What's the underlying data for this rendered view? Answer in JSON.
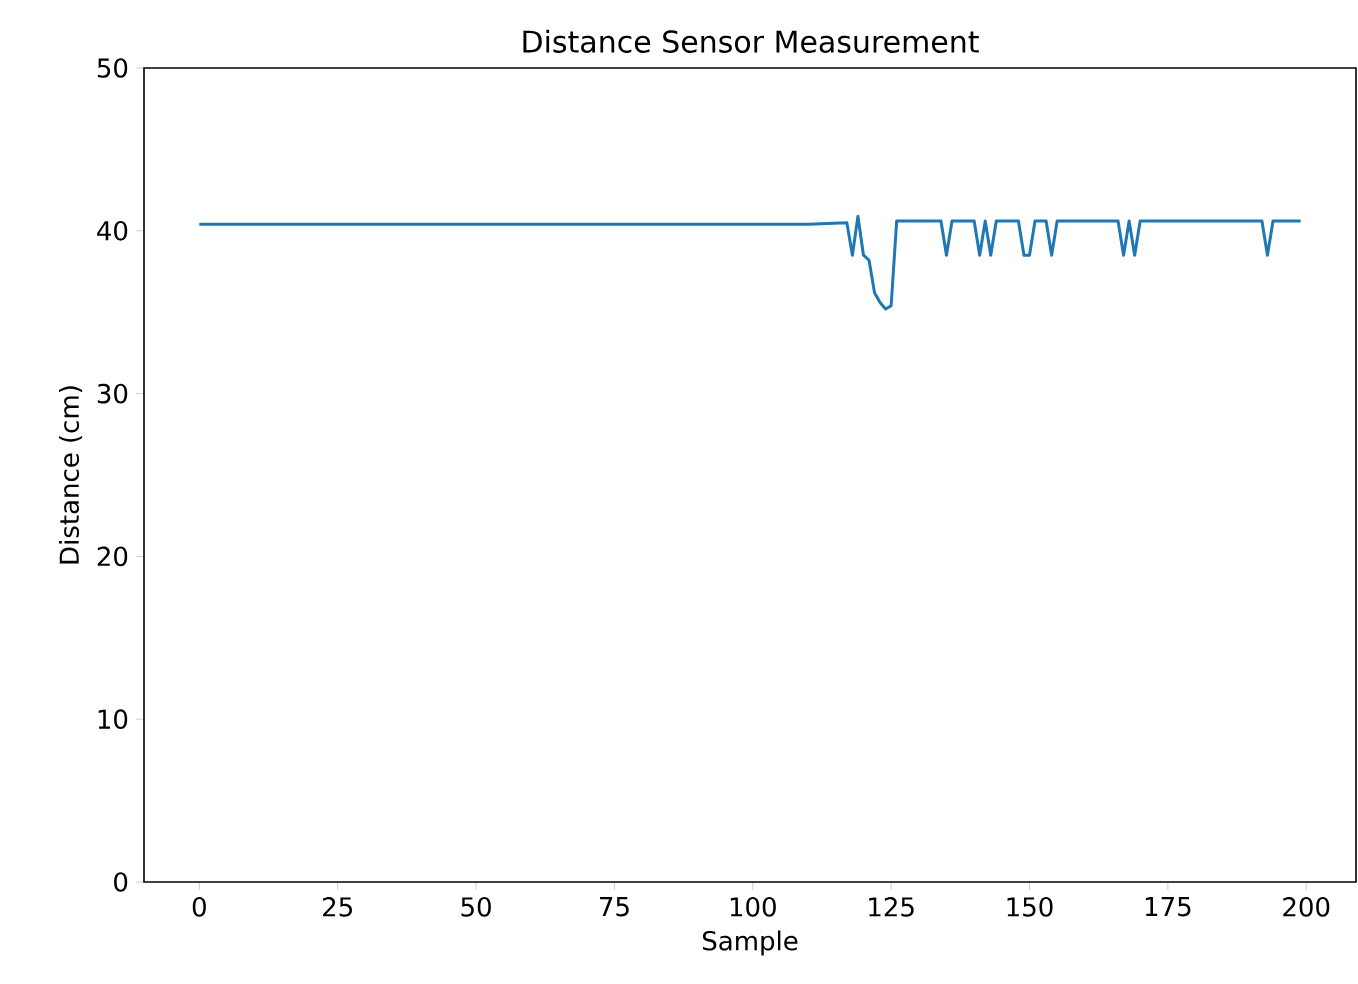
{
  "chart_data": {
    "type": "line",
    "title": "Distance Sensor Measurement",
    "xlabel": "Sample",
    "ylabel": "Distance (cm)",
    "xlim": [
      -10,
      209
    ],
    "ylim": [
      0,
      50
    ],
    "xticks": [
      0,
      25,
      50,
      75,
      100,
      125,
      150,
      175,
      200
    ],
    "yticks": [
      0,
      10,
      20,
      30,
      40,
      50
    ],
    "series": [
      {
        "color": "#1f77b4",
        "x": [
          0,
          10,
          20,
          30,
          40,
          50,
          60,
          70,
          80,
          90,
          100,
          110,
          117,
          118,
          119,
          120,
          121,
          122,
          123,
          124,
          125,
          126,
          134,
          135,
          136,
          140,
          141,
          142,
          143,
          144,
          148,
          149,
          150,
          151,
          153,
          154,
          155,
          166,
          167,
          168,
          169,
          170,
          192,
          193,
          194,
          199
        ],
        "values": [
          40.4,
          40.4,
          40.4,
          40.4,
          40.4,
          40.4,
          40.4,
          40.4,
          40.4,
          40.4,
          40.4,
          40.4,
          40.5,
          38.5,
          40.9,
          38.5,
          38.2,
          36.2,
          35.6,
          35.2,
          35.4,
          40.6,
          40.6,
          38.5,
          40.6,
          40.6,
          38.5,
          40.6,
          38.5,
          40.6,
          40.6,
          38.5,
          38.5,
          40.6,
          40.6,
          38.5,
          40.6,
          40.6,
          38.5,
          40.6,
          38.5,
          40.6,
          40.6,
          38.5,
          40.6,
          40.6
        ]
      }
    ]
  }
}
